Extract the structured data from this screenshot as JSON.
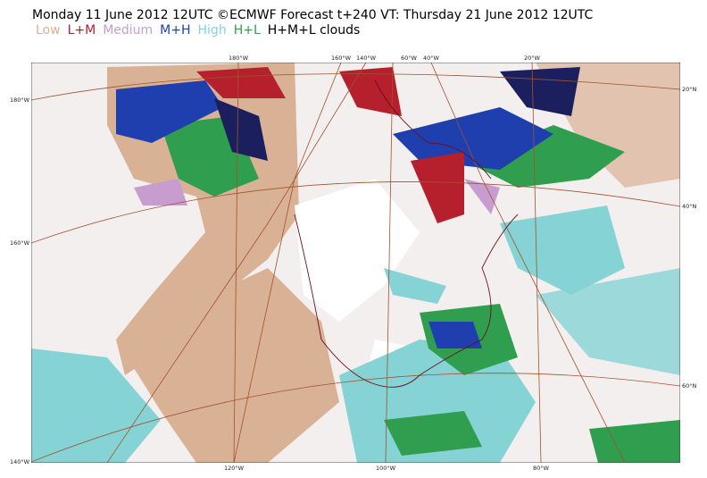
{
  "header": {
    "title": "Monday 11 June 2012 12UTC ©ECMWF Forecast t+240 VT: Thursday 21 June 2012 12UTC"
  },
  "legend": {
    "items": [
      {
        "label": "Low",
        "color": "#d9b195"
      },
      {
        "label": "L+M",
        "color": "#b5202c"
      },
      {
        "label": "Medium",
        "color": "#c79ccf"
      },
      {
        "label": "M+H",
        "color": "#1f3fae"
      },
      {
        "label": "High",
        "color": "#86d3d6"
      },
      {
        "label": "H+L",
        "color": "#2f9e4f"
      }
    ],
    "suffix": "H+M+L clouds"
  },
  "map": {
    "top_labels": [
      "180°W",
      "160°W",
      "140°W",
      "60°W",
      "40°W",
      "20°W"
    ],
    "bottom_labels": [
      "120°W",
      "100°W",
      "80°W"
    ],
    "left_labels": [
      "180°W",
      "160°W",
      "140°W"
    ],
    "right_labels": [
      "20°N",
      "40°N",
      "60°N"
    ]
  }
}
